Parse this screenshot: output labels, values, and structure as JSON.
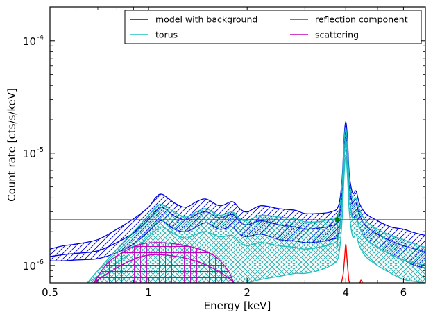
{
  "chart_data": {
    "type": "line",
    "xlabel": "Energy [keV]",
    "ylabel": "Count rate [cts/s/keV]",
    "x_scale": "log",
    "y_scale": "log",
    "xlim": [
      0.5,
      7.0
    ],
    "ylim": [
      7e-07,
      0.0002
    ],
    "x_ticks": [
      {
        "value": 0.5,
        "label": "0.5"
      },
      {
        "value": 1,
        "label": "1"
      },
      {
        "value": 2,
        "label": "2"
      },
      {
        "value": 4,
        "label": "4"
      },
      {
        "value": 6,
        "label": "6"
      }
    ],
    "y_ticks": [
      {
        "value": 1e-06,
        "label": "10",
        "exp": "-6"
      },
      {
        "value": 1e-05,
        "label": "10",
        "exp": "-5"
      },
      {
        "value": 0.0001,
        "label": "10",
        "exp": "-4"
      }
    ],
    "legend": {
      "placement": "top-right",
      "columns": 2,
      "entries": [
        {
          "label": "model with background",
          "color": "#0000dd"
        },
        {
          "label": "reflection component",
          "color": "#ff0000"
        },
        {
          "label": "torus",
          "color": "#1fbfbf"
        },
        {
          "label": "scattering",
          "color": "#bf00bf"
        }
      ]
    },
    "reference_line": {
      "y": 2.55e-06,
      "color": "#008000"
    },
    "reference_point": {
      "x": 3.77,
      "y": 2.55e-06,
      "color": "#008000"
    },
    "series": [
      {
        "name": "model with background",
        "color": "#0000dd",
        "hatch": "diagonal",
        "x": [
          0.5,
          0.55,
          0.6,
          0.7,
          0.8,
          0.9,
          1.0,
          1.05,
          1.1,
          1.2,
          1.3,
          1.4,
          1.5,
          1.65,
          1.8,
          1.9,
          2.0,
          2.2,
          2.5,
          2.8,
          3.0,
          3.3,
          3.6,
          3.8,
          3.9,
          3.95,
          4.0,
          4.05,
          4.1,
          4.2,
          4.3,
          4.4,
          4.6,
          5.0,
          5.5,
          6.0,
          6.5,
          7.0
        ],
        "upper": [
          1.4e-06,
          1.5e-06,
          1.55e-06,
          1.7e-06,
          2.1e-06,
          2.6e-06,
          3.3e-06,
          4e-06,
          4.3e-06,
          3.6e-06,
          3.3e-06,
          3.7e-06,
          3.9e-06,
          3.4e-06,
          3.7e-06,
          3.2e-06,
          3e-06,
          3.4e-06,
          3.2e-06,
          3.1e-06,
          2.9e-06,
          2.9e-06,
          3e-06,
          3.4e-06,
          6e-06,
          1.3e-05,
          1.9e-05,
          1.3e-05,
          6.5e-06,
          4.4e-06,
          4.6e-06,
          3.6e-06,
          2.9e-06,
          2.5e-06,
          2.2e-06,
          2.1e-06,
          1.95e-06,
          1.85e-06
        ],
        "lower": [
          1.1e-06,
          1.1e-06,
          1.12e-06,
          1.15e-06,
          1.3e-06,
          1.55e-06,
          2e-06,
          2.3e-06,
          2.5e-06,
          2.1e-06,
          2e-06,
          2.2e-06,
          2.4e-06,
          2.1e-06,
          2.2e-06,
          1.9e-06,
          1.8e-06,
          1.9e-06,
          1.7e-06,
          1.65e-06,
          1.6e-06,
          1.62e-06,
          1.7e-06,
          1.9e-06,
          3.8e-06,
          8.5e-06,
          1.25e-05,
          8e-06,
          4.2e-06,
          2.7e-06,
          2.8e-06,
          2.2e-06,
          1.75e-06,
          1.45e-06,
          1.25e-06,
          1.12e-06,
          1e-06,
          9.5e-07
        ],
        "y": [
          1.2e-06,
          1.25e-06,
          1.28e-06,
          1.35e-06,
          1.6e-06,
          1.95e-06,
          2.55e-06,
          3e-06,
          3.3e-06,
          2.75e-06,
          2.55e-06,
          2.85e-06,
          3e-06,
          2.65e-06,
          2.85e-06,
          2.45e-06,
          2.3e-06,
          2.5e-06,
          2.3e-06,
          2.2e-06,
          2.1e-06,
          2.15e-06,
          2.25e-06,
          2.55e-06,
          4.8e-06,
          1.05e-05,
          1.55e-05,
          1e-05,
          5.3e-06,
          3.5e-06,
          3.6e-06,
          2.85e-06,
          2.25e-06,
          1.9e-06,
          1.65e-06,
          1.5e-06,
          1.4e-06,
          1.32e-06
        ]
      },
      {
        "name": "torus",
        "color": "#1fbfbf",
        "hatch": "cross",
        "x": [
          0.65,
          0.7,
          0.8,
          0.9,
          1.0,
          1.05,
          1.1,
          1.2,
          1.3,
          1.4,
          1.5,
          1.65,
          1.8,
          1.9,
          2.0,
          2.2,
          2.5,
          2.8,
          3.0,
          3.3,
          3.6,
          3.8,
          3.9,
          3.95,
          4.0,
          4.05,
          4.1,
          4.2,
          4.3,
          4.4,
          4.6,
          5.0,
          5.5,
          6.0,
          6.5,
          7.0
        ],
        "upper": [
          7e-07,
          9e-07,
          1.4e-06,
          2e-06,
          2.8e-06,
          3.3e-06,
          3.5e-06,
          3e-06,
          2.7e-06,
          3e-06,
          3.2e-06,
          2.8e-06,
          3e-06,
          2.6e-06,
          2.5e-06,
          2.8e-06,
          2.7e-06,
          2.6e-06,
          2.45e-06,
          2.45e-06,
          2.6e-06,
          2.9e-06,
          5.5e-06,
          1.2e-05,
          1.7e-05,
          1.15e-05,
          5.8e-06,
          3.9e-06,
          4e-06,
          3.2e-06,
          2.5e-06,
          2.1e-06,
          1.85e-06,
          1.7e-06,
          1.55e-06,
          1.45e-06
        ],
        "lower": [
          7e-07,
          7e-07,
          7e-07,
          7e-07,
          7e-07,
          7e-07,
          7e-07,
          7e-07,
          7e-07,
          7e-07,
          7e-07,
          7e-07,
          7e-07,
          7e-07,
          7e-07,
          7.5e-07,
          8e-07,
          8.5e-07,
          8.5e-07,
          9e-07,
          1e-06,
          1.2e-06,
          2.6e-06,
          6e-06,
          9.5e-06,
          6e-06,
          3e-06,
          1.8e-06,
          1.9e-06,
          1.5e-06,
          1.2e-06,
          1e-06,
          8.5e-07,
          7.5e-07,
          7.2e-07,
          7e-07
        ],
        "y": [
          7e-07,
          8e-07,
          1.05e-06,
          1.35e-06,
          1.8e-06,
          2.05e-06,
          2.2e-06,
          1.9e-06,
          1.75e-06,
          1.9e-06,
          2e-06,
          1.8e-06,
          1.85e-06,
          1.6e-06,
          1.5e-06,
          1.6e-06,
          1.5e-06,
          1.45e-06,
          1.4e-06,
          1.45e-06,
          1.55e-06,
          1.8e-06,
          3.7e-06,
          8.5e-06,
          1.3e-05,
          8.5e-06,
          4.2e-06,
          2.6e-06,
          2.7e-06,
          2.2e-06,
          1.75e-06,
          1.45e-06,
          1.25e-06,
          1.12e-06,
          1.05e-06,
          1e-06
        ]
      },
      {
        "name": "scattering",
        "color": "#bf00bf",
        "hatch": "grid",
        "x": [
          0.68,
          0.75,
          0.85,
          0.95,
          1.05,
          1.15,
          1.3,
          1.45,
          1.6,
          1.75,
          1.82
        ],
        "upper": [
          7e-07,
          1.05e-06,
          1.35e-06,
          1.55e-06,
          1.6e-06,
          1.58e-06,
          1.5e-06,
          1.38e-06,
          1.2e-06,
          9e-07,
          7e-07
        ],
        "lower": [
          7e-07,
          7e-07,
          7e-07,
          7e-07,
          7e-07,
          7e-07,
          7e-07,
          7e-07,
          7e-07,
          7e-07,
          7e-07
        ],
        "y": [
          7e-07,
          8.5e-07,
          1.05e-06,
          1.2e-06,
          1.25e-06,
          1.23e-06,
          1.16e-06,
          1.05e-06,
          9.2e-07,
          7.8e-07,
          7e-07
        ]
      },
      {
        "name": "reflection component",
        "color": "#ff0000",
        "hatch": "none",
        "x": [
          3.88,
          3.93,
          3.97,
          4.0,
          4.03,
          4.07,
          4.12,
          4.4,
          4.45,
          4.5
        ],
        "y": [
          7e-07,
          8.5e-07,
          1.2e-06,
          1.55e-06,
          1.2e-06,
          8.5e-07,
          7e-07,
          7e-07,
          7.4e-07,
          7e-07
        ]
      }
    ]
  }
}
